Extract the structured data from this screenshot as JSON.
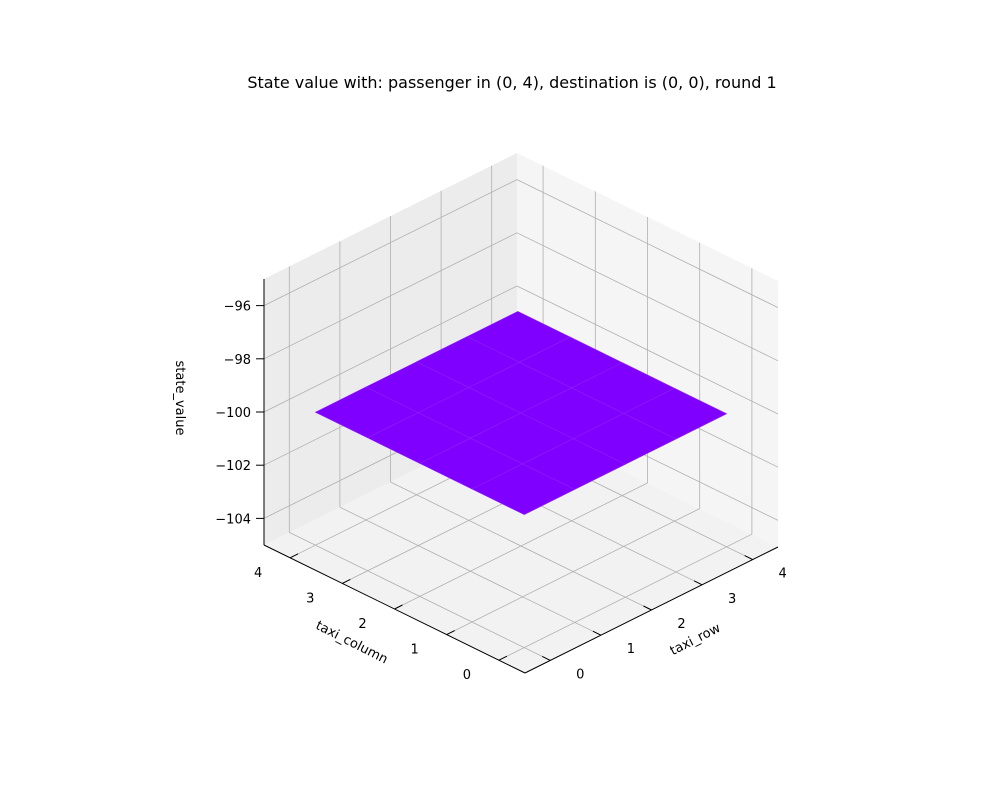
{
  "chart_data": {
    "type": "surface3d",
    "title": "State value with: passenger in (0, 4), destination is (0, 0), round 1",
    "xlabel": "taxi_row",
    "ylabel": "taxi_column",
    "zlabel": "state_value",
    "x": [
      0,
      1,
      2,
      3,
      4
    ],
    "y": [
      0,
      1,
      2,
      3,
      4
    ],
    "z": [
      [
        -100,
        -100,
        -100,
        -100,
        -100
      ],
      [
        -100,
        -100,
        -100,
        -100,
        -100
      ],
      [
        -100,
        -100,
        -100,
        -100,
        -100
      ],
      [
        -100,
        -100,
        -100,
        -100,
        -100
      ],
      [
        -100,
        -100,
        -100,
        -100,
        -100
      ]
    ],
    "xticks": [
      "0",
      "1",
      "2",
      "3",
      "4"
    ],
    "yticks": [
      "0",
      "1",
      "2",
      "3",
      "4"
    ],
    "zticks": [
      "−104",
      "−102",
      "−100",
      "−98",
      "−96"
    ],
    "zlim": [
      -105,
      -95
    ],
    "surface_color": "#8000ff",
    "pane_color": "#f2f2f2",
    "grid": true
  }
}
